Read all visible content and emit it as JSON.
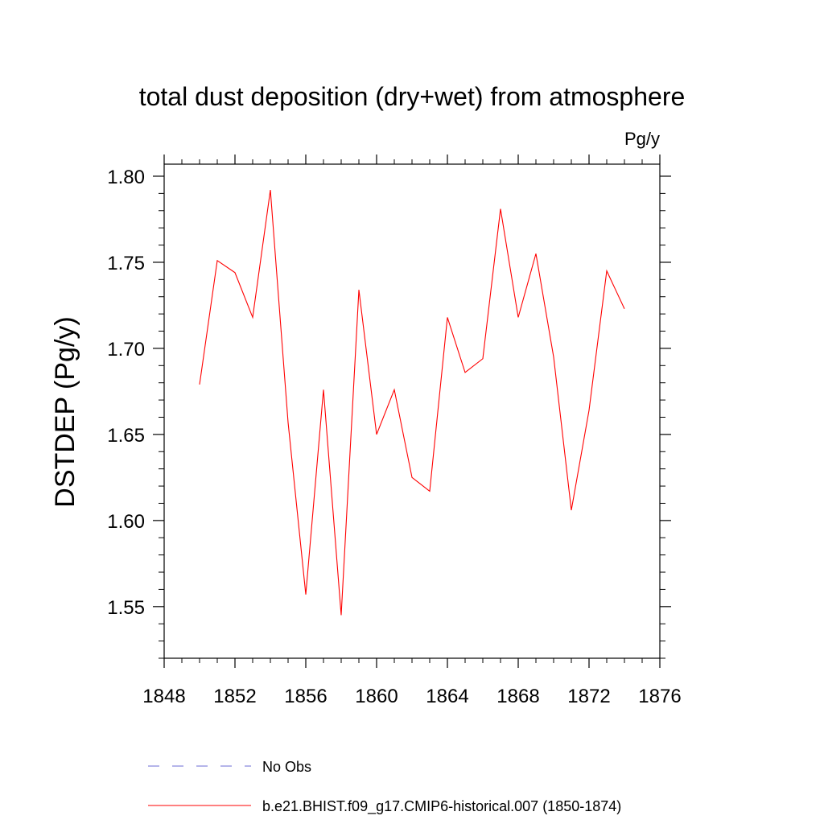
{
  "chart_data": {
    "type": "line",
    "title": "total dust deposition (dry+wet) from atmosphere",
    "units_label": "Pg/y",
    "ylabel": "DSTDEP  (Pg/y)",
    "xlabel": "",
    "xlim": [
      1848,
      1876
    ],
    "ylim": [
      1.52,
      1.807
    ],
    "x_ticks": [
      1848,
      1852,
      1856,
      1860,
      1864,
      1868,
      1872,
      1876
    ],
    "x_tick_labels": [
      "1848",
      "1852",
      "1856",
      "1860",
      "1864",
      "1868",
      "1872",
      "1876"
    ],
    "y_ticks": [
      1.55,
      1.6,
      1.65,
      1.7,
      1.75,
      1.8
    ],
    "y_tick_labels": [
      "1.55",
      "1.60",
      "1.65",
      "1.70",
      "1.75",
      "1.80"
    ],
    "grid": false,
    "legend_position": "bottom",
    "series": [
      {
        "name": "No Obs",
        "color": "#6b6bd6",
        "dash": "dashed",
        "x": [],
        "values": []
      },
      {
        "name": "b.e21.BHIST.f09_g17.CMIP6-historical.007 (1850-1874)",
        "color": "#ff0000",
        "dash": "solid",
        "x": [
          1850,
          1851,
          1852,
          1853,
          1854,
          1855,
          1856,
          1857,
          1858,
          1859,
          1860,
          1861,
          1862,
          1863,
          1864,
          1865,
          1866,
          1867,
          1868,
          1869,
          1870,
          1871,
          1872,
          1873,
          1874
        ],
        "values": [
          1.679,
          1.751,
          1.744,
          1.718,
          1.792,
          1.657,
          1.557,
          1.676,
          1.545,
          1.734,
          1.65,
          1.676,
          1.625,
          1.617,
          1.718,
          1.686,
          1.694,
          1.781,
          1.718,
          1.755,
          1.695,
          1.606,
          1.664,
          1.745,
          1.723
        ]
      }
    ]
  }
}
